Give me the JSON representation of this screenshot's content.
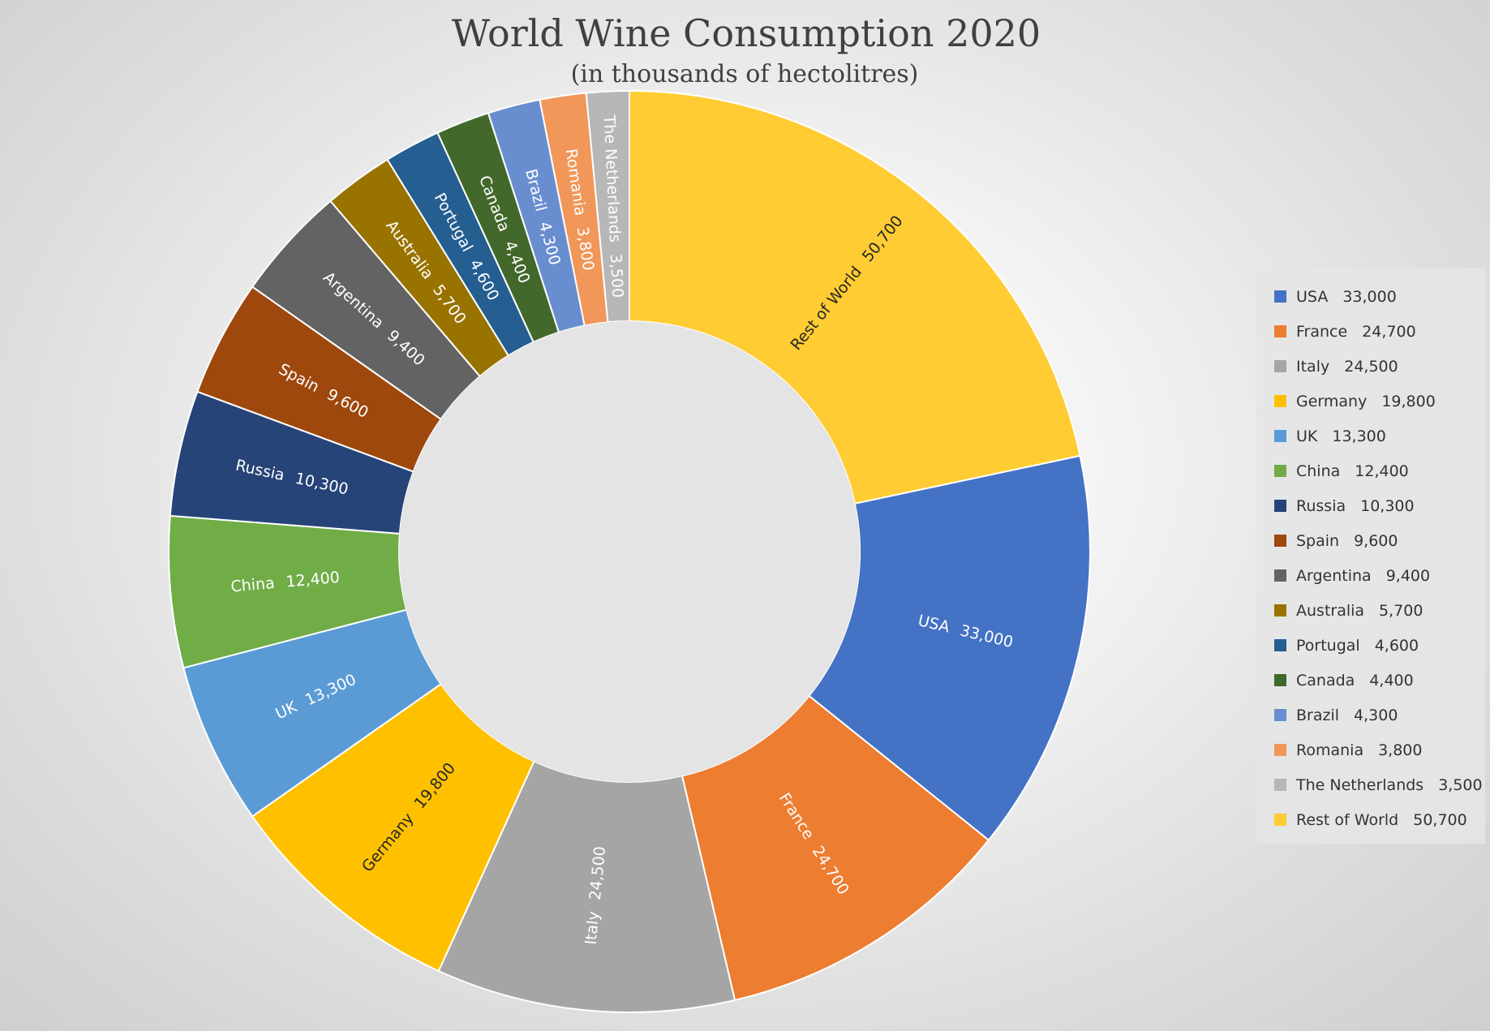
{
  "chart_data": {
    "type": "pie",
    "title": "World Wine Consumption 2020",
    "subtitle": "(in thousands of hectolitres)",
    "legend_position": "right",
    "donut": true,
    "slices": [
      {
        "label": "Rest of World",
        "value": 50700,
        "display": "50,700",
        "color": "#FFCC33",
        "label_color": "#262626"
      },
      {
        "label": "USA",
        "value": 33000,
        "display": "33,000",
        "color": "#4472C4",
        "label_color": "#FFFFFF"
      },
      {
        "label": "France",
        "value": 24700,
        "display": "24,700",
        "color": "#ED7D31",
        "label_color": "#FFFFFF"
      },
      {
        "label": "Italy",
        "value": 24500,
        "display": "24,500",
        "color": "#A5A5A5",
        "label_color": "#FFFFFF"
      },
      {
        "label": "Germany",
        "value": 19800,
        "display": "19,800",
        "color": "#FFC000",
        "label_color": "#262626"
      },
      {
        "label": "UK",
        "value": 13300,
        "display": "13,300",
        "color": "#5B9BD5",
        "label_color": "#FFFFFF"
      },
      {
        "label": "China",
        "value": 12400,
        "display": "12,400",
        "color": "#70AD47",
        "label_color": "#FFFFFF"
      },
      {
        "label": "Russia",
        "value": 10300,
        "display": "10,300",
        "color": "#264478",
        "label_color": "#FFFFFF"
      },
      {
        "label": "Spain",
        "value": 9600,
        "display": "9,600",
        "color": "#9E480E",
        "label_color": "#FFFFFF"
      },
      {
        "label": "Argentina",
        "value": 9400,
        "display": "9,400",
        "color": "#636363",
        "label_color": "#FFFFFF"
      },
      {
        "label": "Australia",
        "value": 5700,
        "display": "5,700",
        "color": "#997300",
        "label_color": "#FFFFFF"
      },
      {
        "label": "Portugal",
        "value": 4600,
        "display": "4,600",
        "color": "#255E91",
        "label_color": "#FFFFFF"
      },
      {
        "label": "Canada",
        "value": 4400,
        "display": "4,400",
        "color": "#43682B",
        "label_color": "#FFFFFF"
      },
      {
        "label": "Brazil",
        "value": 4300,
        "display": "4,300",
        "color": "#698ED0",
        "label_color": "#FFFFFF"
      },
      {
        "label": "Romania",
        "value": 3800,
        "display": "3,800",
        "color": "#F1975A",
        "label_color": "#FFFFFF"
      },
      {
        "label": "The Netherlands",
        "value": 3500,
        "display": "3,500",
        "color": "#B7B7B7",
        "label_color": "#FFFFFF"
      }
    ],
    "legend_order": [
      "USA",
      "France",
      "Italy",
      "Germany",
      "UK",
      "China",
      "Russia",
      "Spain",
      "Argentina",
      "Australia",
      "Portugal",
      "Canada",
      "Brazil",
      "Romania",
      "The Netherlands",
      "Rest of World"
    ]
  }
}
